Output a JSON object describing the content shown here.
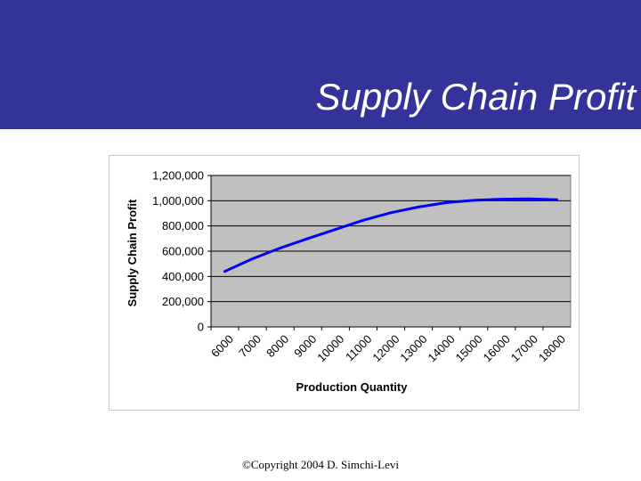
{
  "slide": {
    "title": "Supply Chain Profit",
    "footer": "©Copyright 2004 D. Simchi-Levi",
    "header_color": "#333399"
  },
  "chart_data": {
    "type": "line",
    "xlabel": "Production Quantity",
    "ylabel": "Supply Chain Profit",
    "categories": [
      "6000",
      "7000",
      "8000",
      "9000",
      "10000",
      "11000",
      "12000",
      "13000",
      "14000",
      "15000",
      "16000",
      "17000",
      "18000"
    ],
    "yticks": [
      "0",
      "200,000",
      "400,000",
      "600,000",
      "800,000",
      "1,000,000",
      "1,200,000"
    ],
    "ylim": [
      0,
      1200000
    ],
    "grid": true,
    "plot_background": "#c0c0c0",
    "series": [
      {
        "color": "#0000ff",
        "values": [
          440000,
          540000,
          625000,
          700000,
          772000,
          845000,
          905000,
          950000,
          985000,
          1003000,
          1012000,
          1014000,
          1008000
        ]
      }
    ]
  }
}
